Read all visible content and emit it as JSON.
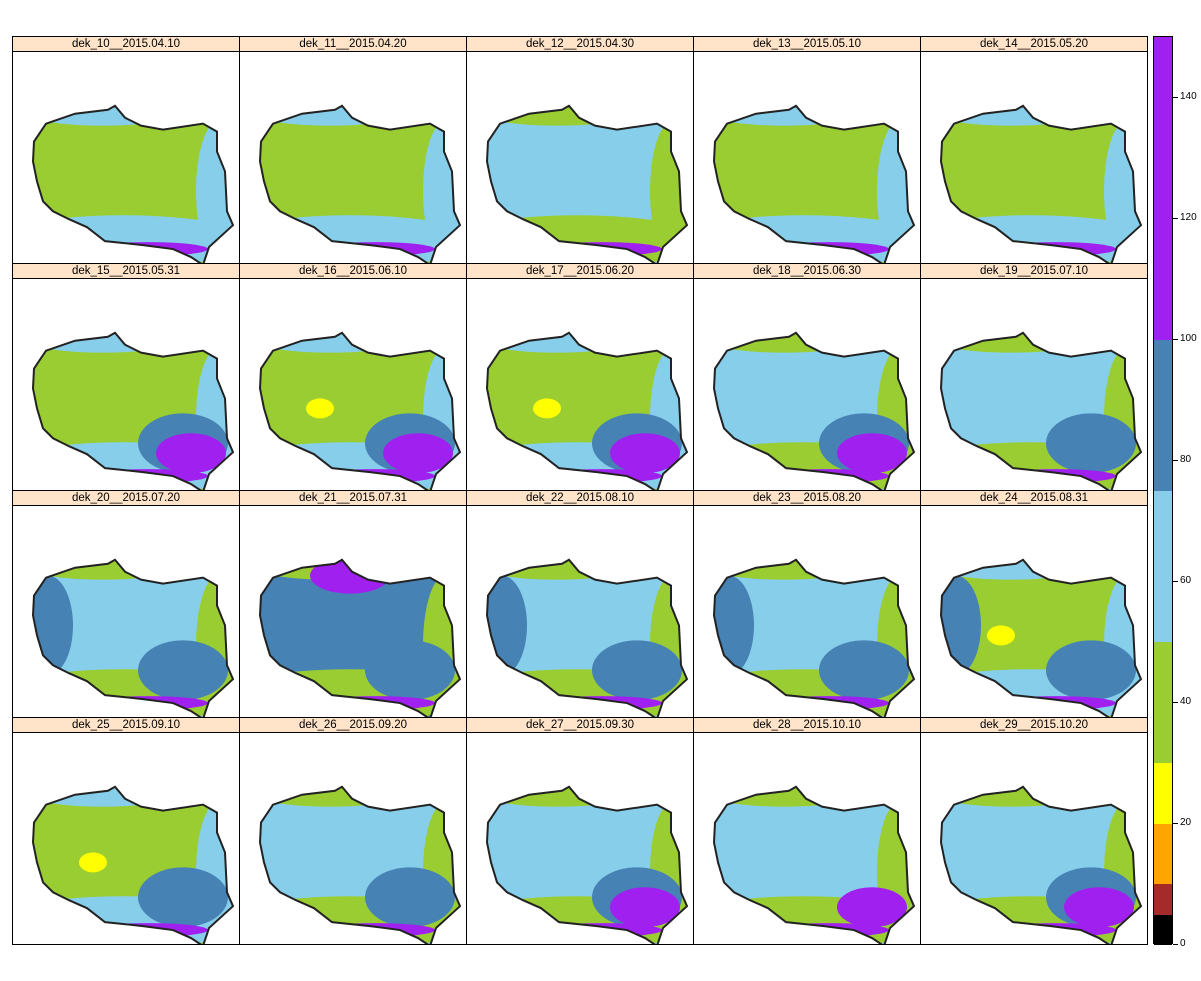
{
  "panels": [
    {
      "title": "dek_10__2015.04.10",
      "dominant": "green"
    },
    {
      "title": "dek_11__2015.04.20",
      "dominant": "green"
    },
    {
      "title": "dek_12__2015.04.30",
      "dominant": "lightblue"
    },
    {
      "title": "dek_13__2015.05.10",
      "dominant": "green"
    },
    {
      "title": "dek_14__2015.05.20",
      "dominant": "green"
    },
    {
      "title": "dek_15__2015.05.31",
      "dominant": "green"
    },
    {
      "title": "dek_16__2015.06.10",
      "dominant": "green"
    },
    {
      "title": "dek_17__2015.06.20",
      "dominant": "green"
    },
    {
      "title": "dek_18__2015.06.30",
      "dominant": "lightblue"
    },
    {
      "title": "dek_19__2015.07.10",
      "dominant": "lightblue"
    },
    {
      "title": "dek_20__2015.07.20",
      "dominant": "lightblue"
    },
    {
      "title": "dek_21__2015.07.31",
      "dominant": "steelblue"
    },
    {
      "title": "dek_22__2015.08.10",
      "dominant": "lightblue"
    },
    {
      "title": "dek_23__2015.08.20",
      "dominant": "lightblue"
    },
    {
      "title": "dek_24__2015.08.31",
      "dominant": "green"
    },
    {
      "title": "dek_25__2015.09.10",
      "dominant": "green"
    },
    {
      "title": "dek_26__2015.09.20",
      "dominant": "lightblue"
    },
    {
      "title": "dek_27__2015.09.30",
      "dominant": "lightblue"
    },
    {
      "title": "dek_28__2015.10.10",
      "dominant": "lightblue"
    },
    {
      "title": "dek_29__2015.10.20",
      "dominant": "lightblue"
    }
  ],
  "colors": {
    "green": "#9acd32",
    "lightblue": "#87ceeb",
    "steelblue": "#4682b4",
    "purple": "#a020f0",
    "yellow": "#ffff00",
    "outline": "#222222"
  },
  "legend": {
    "range": [
      0,
      150
    ],
    "breaks": [
      {
        "from": 0,
        "to": 5,
        "color": "#000000"
      },
      {
        "from": 5,
        "to": 10,
        "color": "#a52a2a"
      },
      {
        "from": 10,
        "to": 20,
        "color": "#ffa500"
      },
      {
        "from": 20,
        "to": 30,
        "color": "#ffff00"
      },
      {
        "from": 30,
        "to": 50,
        "color": "#9acd32"
      },
      {
        "from": 50,
        "to": 75,
        "color": "#87ceeb"
      },
      {
        "from": 75,
        "to": 100,
        "color": "#4682b4"
      },
      {
        "from": 100,
        "to": 150,
        "color": "#a020f0"
      }
    ],
    "ticks": [
      "0",
      "20",
      "40",
      "60",
      "80",
      "100",
      "120",
      "140"
    ]
  }
}
